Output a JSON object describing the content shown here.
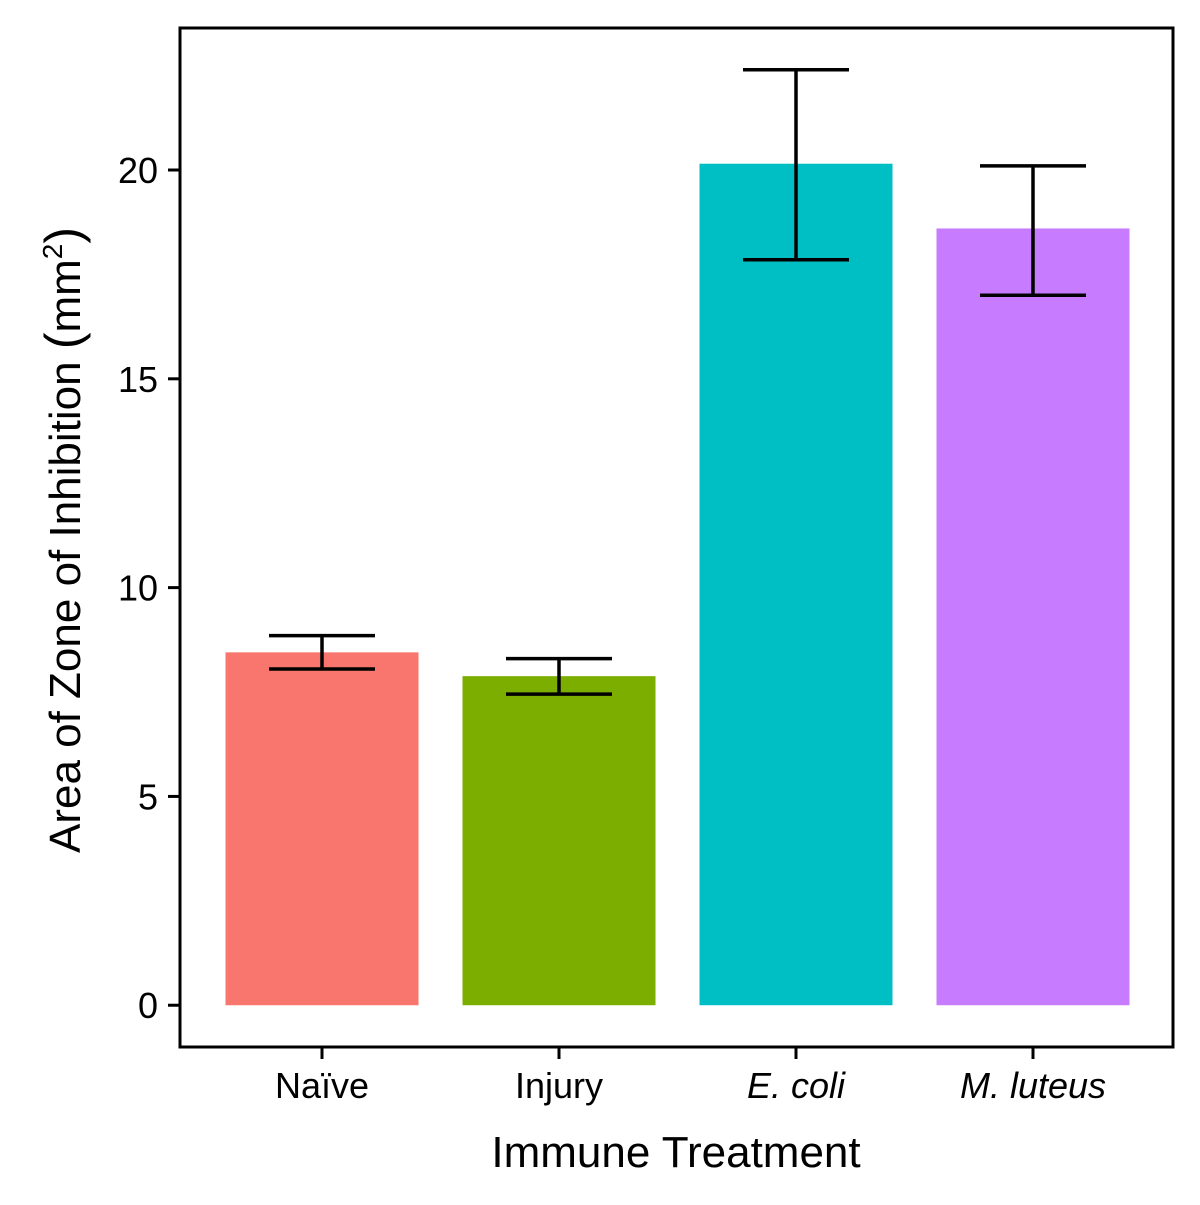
{
  "chart_data": {
    "type": "bar",
    "title": "",
    "xlabel": "Immune Treatment",
    "ylabel": "Area of Zone of Inhibition (mm²)",
    "ylabel_parts": {
      "main": "Area of Zone of Inhibition ",
      "open": "(",
      "unit": "mm",
      "superscript": "2",
      "close": ")"
    },
    "categories": [
      "Naïve",
      "Injury",
      "E. coli",
      "M. luteus"
    ],
    "categories_italic": [
      false,
      false,
      true,
      true
    ],
    "values": [
      8.45,
      7.88,
      20.15,
      18.6
    ],
    "error_low": [
      8.05,
      7.45,
      17.85,
      17.0
    ],
    "error_high": [
      8.85,
      8.3,
      22.4,
      20.1
    ],
    "colors": [
      "#F8766D",
      "#7CAE00",
      "#00BFC4",
      "#C77CFF"
    ],
    "ylim": [
      -1.0,
      23.4
    ],
    "yticks": [
      0,
      5,
      10,
      15,
      20
    ],
    "ytick_labels": [
      "0",
      "5",
      "10",
      "15",
      "20"
    ],
    "grid": false,
    "legend": "none"
  }
}
